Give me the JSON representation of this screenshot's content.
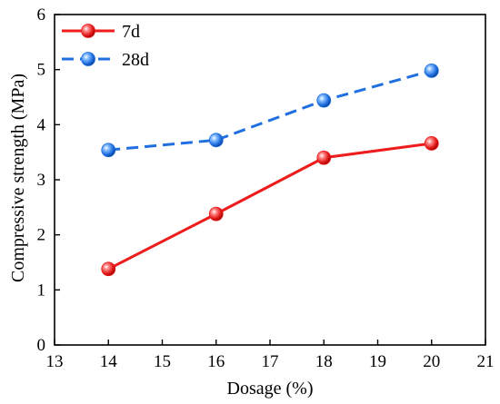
{
  "chart_data": {
    "type": "line",
    "xlabel": "Dosage (%)",
    "ylabel": "Compressive strength (MPa)",
    "xlim": [
      13,
      21
    ],
    "ylim": [
      0,
      6
    ],
    "xticks": [
      "13",
      "14",
      "15",
      "16",
      "17",
      "18",
      "19",
      "20",
      "21"
    ],
    "yticks": [
      "0",
      "1",
      "2",
      "3",
      "4",
      "5",
      "6"
    ],
    "x": [
      14,
      16,
      18,
      20
    ],
    "grid": false,
    "legend_position": "top-left",
    "series": [
      {
        "name": "7d",
        "values": [
          1.38,
          2.38,
          3.4,
          3.66
        ],
        "color": "#ee1c1c",
        "line_style": "solid",
        "marker": "sphere"
      },
      {
        "name": "28d",
        "values": [
          3.54,
          3.72,
          4.44,
          4.98
        ],
        "color": "#1f6fe0",
        "line_style": "dashed",
        "marker": "sphere"
      }
    ]
  }
}
